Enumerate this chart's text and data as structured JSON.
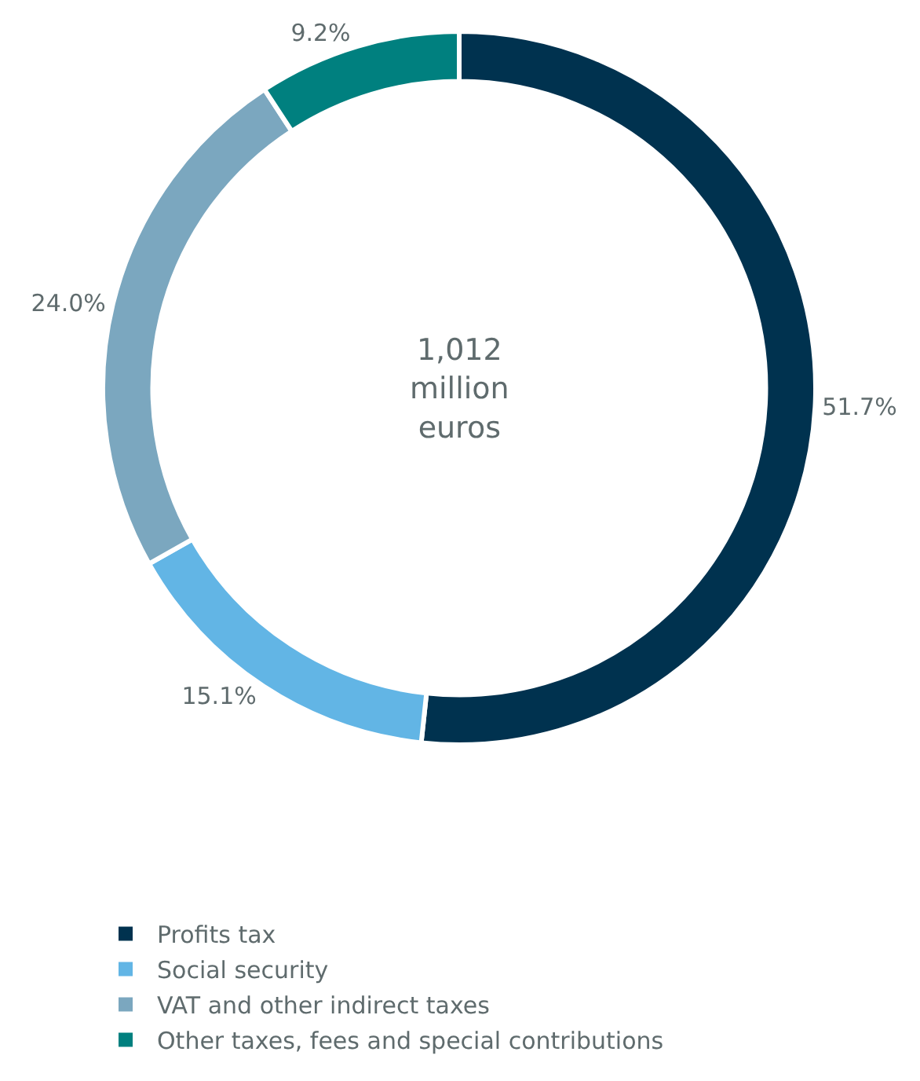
{
  "chart_data": {
    "type": "donut",
    "categories": [
      "Profits tax",
      "Social security",
      "VAT and other indirect taxes",
      "Other taxes, fees and special contributions"
    ],
    "values": [
      51.7,
      15.1,
      24.0,
      9.2
    ],
    "value_labels": [
      "51.7%",
      "15.1%",
      "24.0%",
      "9.2%"
    ],
    "colors": [
      "#00324f",
      "#62b5e5",
      "#7ba7bf",
      "#00807f"
    ],
    "annotations": [
      "1,012\nmillion\neuros"
    ],
    "legend": "bottom"
  }
}
